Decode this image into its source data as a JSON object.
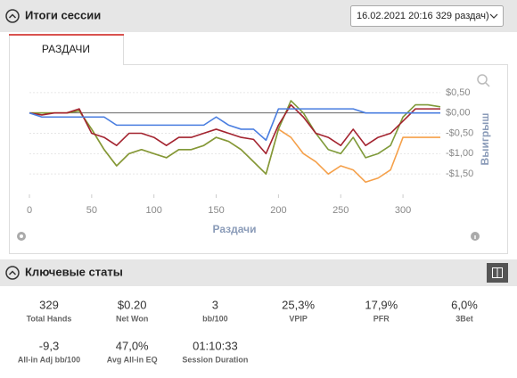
{
  "header": {
    "title": "Итоги сессии",
    "dropdown": "16.02.2021 20:16 329 раздач)"
  },
  "tab": "РАЗДАЧИ",
  "chart": {
    "type": "line",
    "x_label": "Раздачи",
    "y_label": "Выигрыш",
    "x": [
      0,
      10,
      20,
      30,
      40,
      50,
      60,
      70,
      80,
      90,
      100,
      110,
      120,
      130,
      140,
      150,
      160,
      170,
      180,
      190,
      200,
      210,
      220,
      230,
      240,
      250,
      260,
      270,
      280,
      290,
      300,
      310,
      320,
      330
    ],
    "xlim": [
      0,
      330
    ],
    "ylim": [
      -2.0,
      0.65
    ],
    "xticks": [
      0,
      50,
      100,
      150,
      200,
      250,
      300
    ],
    "yticks": [
      {
        "value": 0.5,
        "label": "$0,50"
      },
      {
        "value": 0,
        "label": "$0,00"
      },
      {
        "value": -0.5,
        "label": "-$0,50"
      },
      {
        "value": -1.0,
        "label": "-$1,00"
      },
      {
        "value": -1.5,
        "label": "-$1,50"
      }
    ],
    "series": [
      {
        "color": "#f5a04a",
        "values": [
          0,
          0,
          0,
          0,
          0.05,
          -0.4,
          -0.9,
          -1.3,
          -1.0,
          -0.9,
          -1.0,
          -1.1,
          -0.9,
          -0.9,
          -0.8,
          -0.6,
          -0.7,
          -0.9,
          -1.2,
          -1.5,
          -0.4,
          -0.6,
          -1.0,
          -1.2,
          -1.5,
          -1.3,
          -1.4,
          -1.7,
          -1.6,
          -1.4,
          -0.6,
          -0.6,
          -0.6,
          -0.6
        ]
      },
      {
        "color": "#7f9a3a",
        "values": [
          0,
          0,
          0,
          0,
          0.05,
          -0.4,
          -0.9,
          -1.3,
          -1.0,
          -0.9,
          -1.0,
          -1.1,
          -0.9,
          -0.9,
          -0.8,
          -0.6,
          -0.7,
          -0.9,
          -1.2,
          -1.5,
          -0.4,
          0.3,
          0.0,
          -0.5,
          -0.9,
          -1.0,
          -0.6,
          -1.1,
          -1.0,
          -0.8,
          -0.1,
          0.2,
          0.2,
          0.15
        ]
      },
      {
        "color": "#a3232f",
        "values": [
          0,
          -0.05,
          0,
          0,
          0.1,
          -0.5,
          -0.6,
          -0.8,
          -0.5,
          -0.5,
          -0.6,
          -0.8,
          -0.6,
          -0.6,
          -0.5,
          -0.4,
          -0.5,
          -0.6,
          -0.65,
          -1.0,
          -0.3,
          0.2,
          -0.1,
          -0.5,
          -0.6,
          -0.8,
          -0.4,
          -0.8,
          -0.6,
          -0.5,
          -0.2,
          0.1,
          0.1,
          0.1
        ]
      },
      {
        "color": "#4a7ee0",
        "values": [
          0,
          -0.1,
          -0.1,
          -0.1,
          -0.1,
          -0.1,
          -0.1,
          -0.3,
          -0.3,
          -0.3,
          -0.3,
          -0.3,
          -0.3,
          -0.3,
          -0.3,
          -0.1,
          -0.3,
          -0.4,
          -0.4,
          -0.67,
          0.1,
          0.1,
          0.1,
          0.1,
          0.1,
          0.1,
          0.1,
          0.0,
          0.0,
          0.0,
          0.0,
          0.0,
          0.0,
          0.0
        ]
      }
    ]
  },
  "stats_header": "Ключевые статы",
  "stats": [
    {
      "value": "329",
      "label": "Total Hands"
    },
    {
      "value": "$0.20",
      "label": "Net Won"
    },
    {
      "value": "3",
      "label": "bb/100"
    },
    {
      "value": "25,3%",
      "label": "VPIP"
    },
    {
      "value": "17,9%",
      "label": "PFR"
    },
    {
      "value": "6,0%",
      "label": "3Bet"
    },
    {
      "value": "-9,3",
      "label": "All-in Adj bb/100"
    },
    {
      "value": "47,0%",
      "label": "Avg All-in EQ"
    },
    {
      "value": "01:10:33",
      "label": "Session Duration"
    }
  ]
}
